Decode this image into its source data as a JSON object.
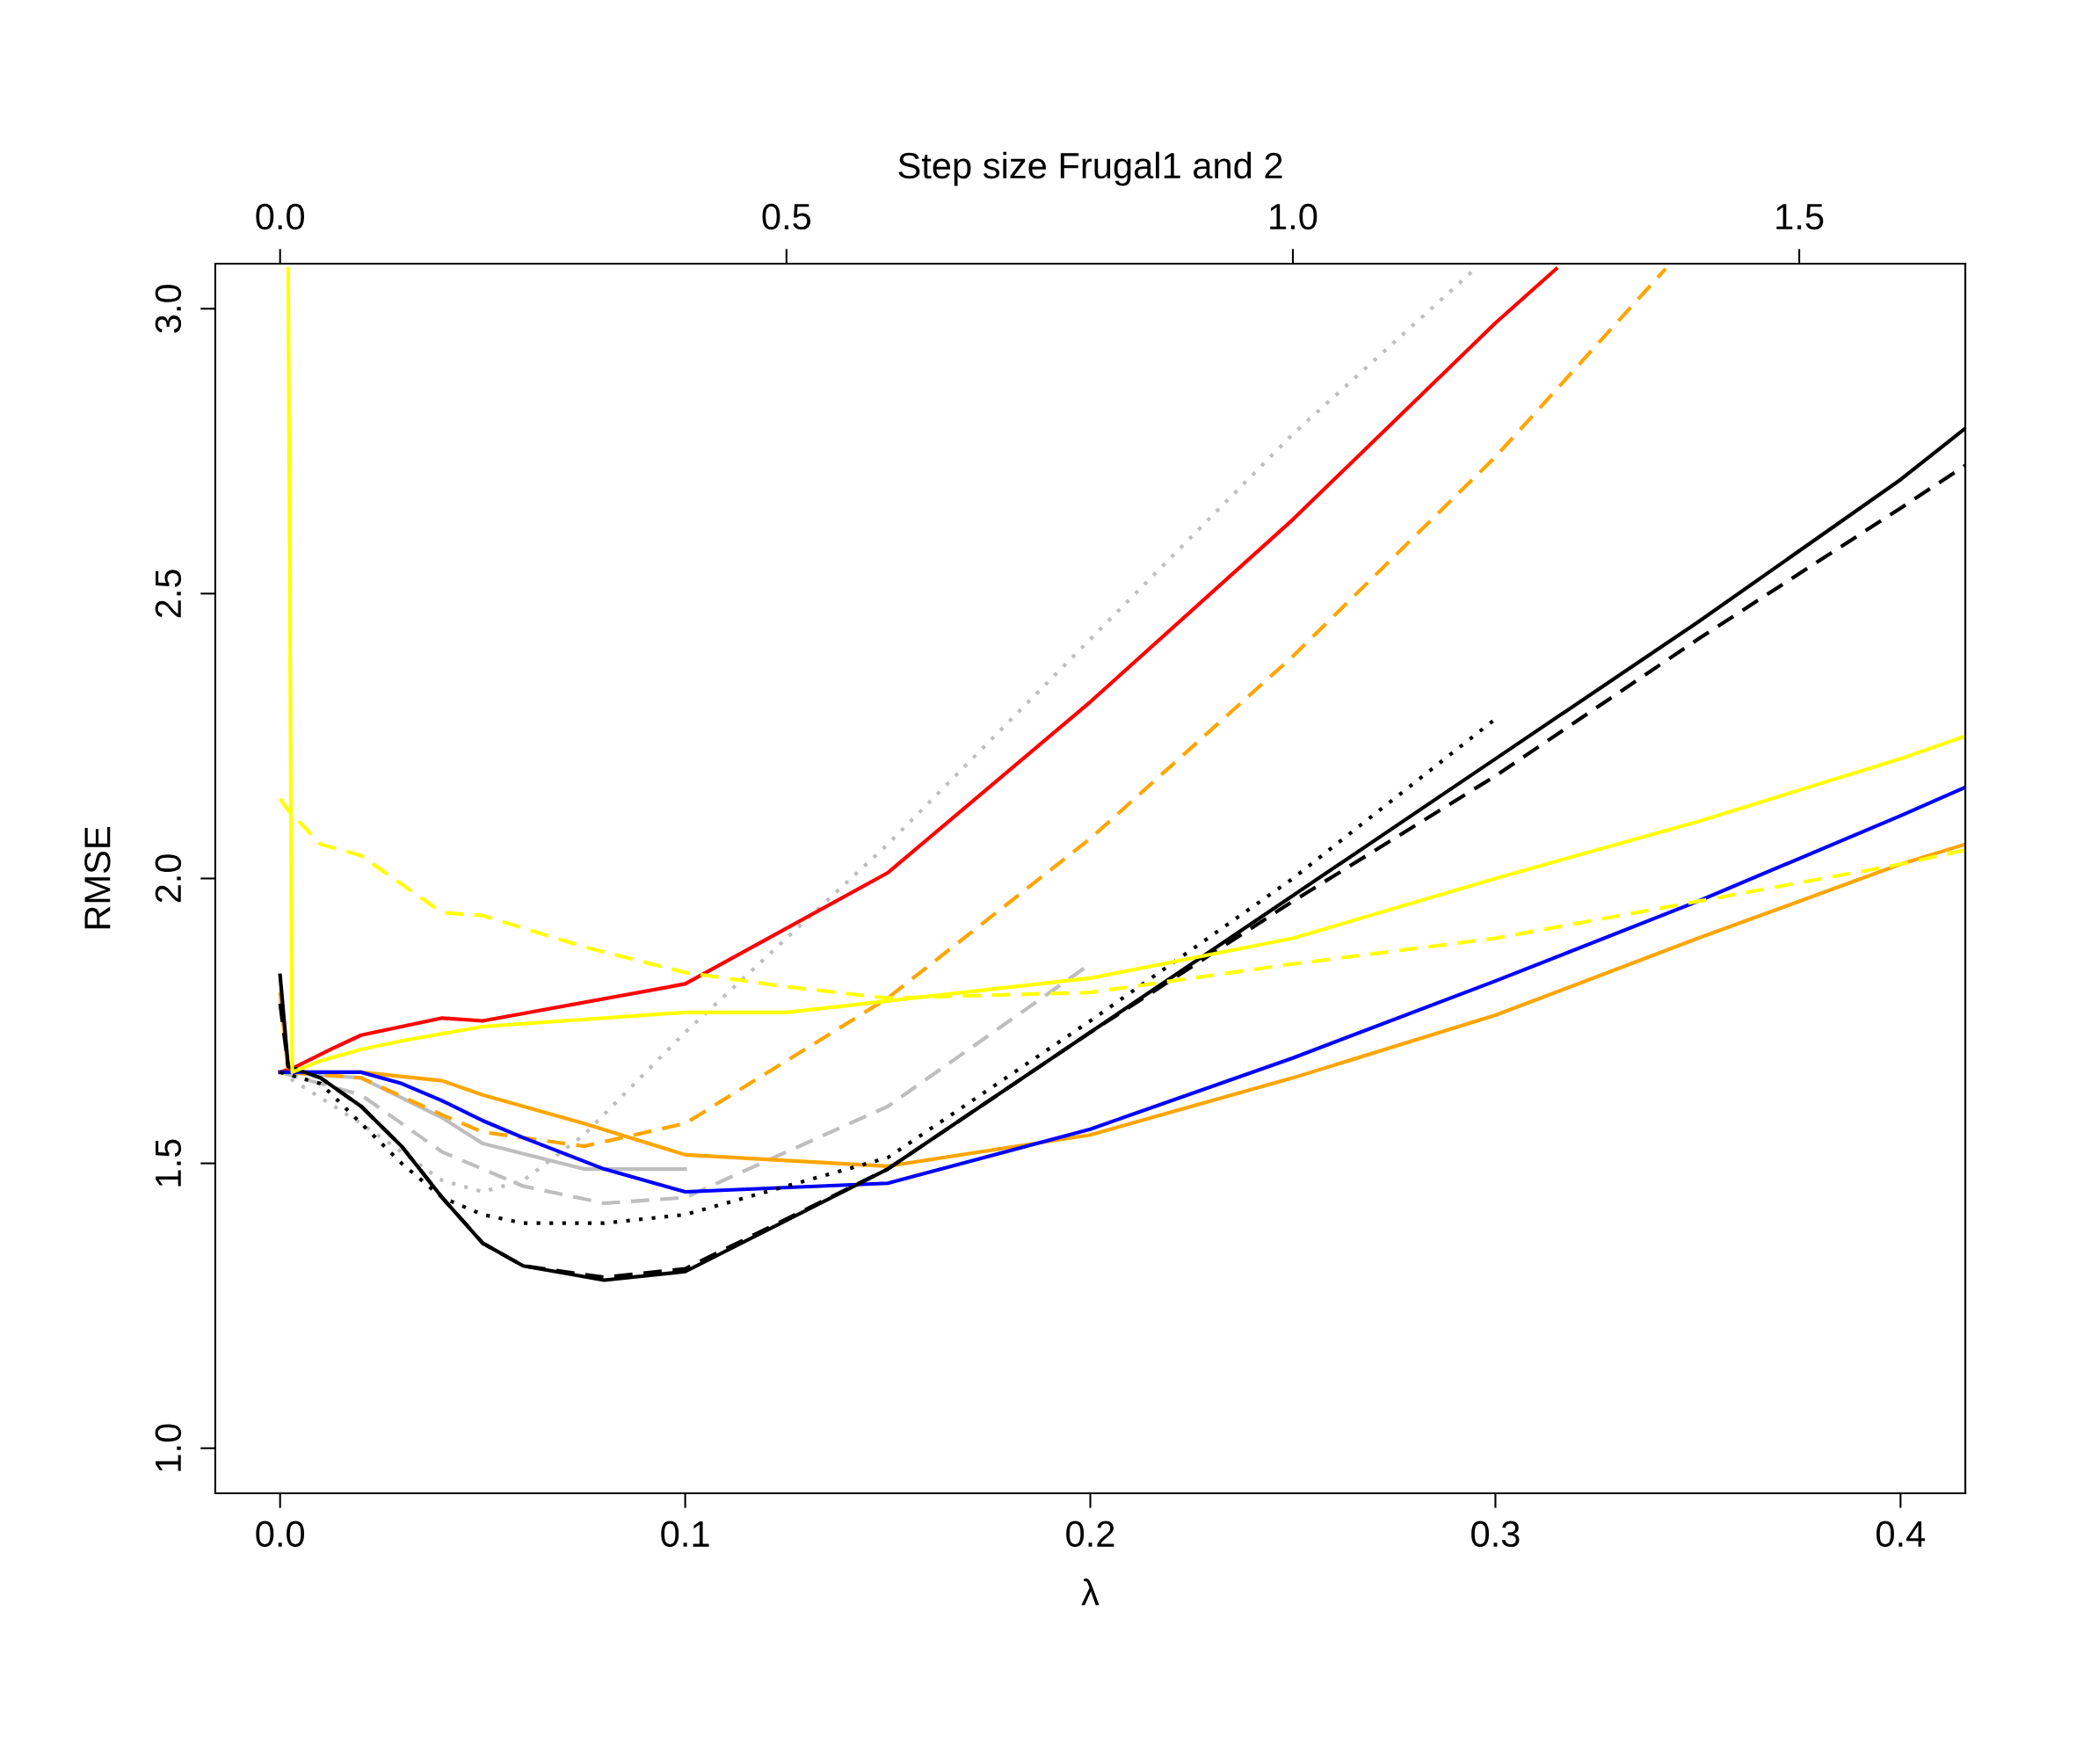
{
  "chart_data": {
    "type": "line",
    "xlabel": "λ",
    "ylabel": "RMSE",
    "x2label": "Step size Frugal1 and 2",
    "xlim": [
      -0.016,
      0.416
    ],
    "xticks": [
      {
        "value": 0,
        "label": "0.0"
      },
      0.1,
      0.2,
      0.3,
      0.4
    ],
    "x2lim": [
      -0.064,
      1.664
    ],
    "x2ticks": [
      {
        "value": 0,
        "label": "0.0"
      },
      0.5,
      {
        "value": 1,
        "label": "1.0"
      },
      1.5
    ],
    "ylim": [
      0.921,
      3.079
    ],
    "yticks": [
      {
        "value": 1,
        "label": "1.0"
      },
      1.5,
      {
        "value": 2,
        "label": "2.0"
      },
      2.5,
      {
        "value": 3,
        "label": "3.0"
      }
    ],
    "series": [
      {
        "color": "#bebebe",
        "line_style": "dotted",
        "x": [
          0.0,
          0.02,
          0.04,
          0.05,
          0.06,
          0.075,
          0.1,
          0.15,
          0.2,
          0.25,
          0.295
        ],
        "values": [
          1.66,
          1.57,
          1.47,
          1.45,
          1.47,
          1.55,
          1.73,
          2.06,
          2.42,
          2.78,
          3.07
        ]
      },
      {
        "color": "#bebebe",
        "line_style": "dashed",
        "x": [
          0.0,
          0.02,
          0.04,
          0.06,
          0.08,
          0.1,
          0.15,
          0.2
        ],
        "values": [
          1.66,
          1.62,
          1.52,
          1.46,
          1.43,
          1.44,
          1.6,
          1.85
        ]
      },
      {
        "color": "#bebebe",
        "line_style": "solid",
        "x": [
          0.0,
          0.02,
          0.04,
          0.05,
          0.075,
          0.1
        ],
        "values": [
          1.66,
          1.65,
          1.58,
          1.535,
          1.49,
          1.49
        ]
      },
      {
        "color": "#ff0000",
        "line_style": "solid",
        "x": [
          0.0,
          0.004,
          0.0125,
          0.02,
          0.03,
          0.04,
          0.05,
          0.1,
          0.15,
          0.2,
          0.25,
          0.3,
          0.315
        ],
        "values": [
          1.66,
          1.67,
          1.7,
          1.725,
          1.74,
          1.755,
          1.75,
          1.815,
          2.01,
          2.31,
          2.63,
          2.975,
          3.07
        ]
      },
      {
        "color": "#ffa500",
        "line_style": "dashed",
        "x": [
          0.0,
          0.002,
          0.02,
          0.04,
          0.05,
          0.075,
          0.1,
          0.15,
          0.2,
          0.25,
          0.3,
          0.342
        ],
        "values": [
          1.8,
          1.66,
          1.65,
          1.585,
          1.555,
          1.53,
          1.57,
          1.79,
          2.07,
          2.39,
          2.74,
          3.07
        ]
      },
      {
        "color": "#ffa500",
        "line_style": "solid",
        "x": [
          0.0,
          0.02,
          0.04,
          0.05,
          0.075,
          0.1,
          0.15,
          0.2,
          0.25,
          0.3,
          0.35,
          0.4,
          0.416
        ],
        "values": [
          1.66,
          1.66,
          1.645,
          1.62,
          1.57,
          1.515,
          1.495,
          1.55,
          1.65,
          1.76,
          1.895,
          2.025,
          2.06
        ]
      },
      {
        "color": "#0000ff",
        "line_style": "solid",
        "x": [
          0.0,
          0.02,
          0.03,
          0.04,
          0.05,
          0.06,
          0.08,
          0.1,
          0.15,
          0.2,
          0.25,
          0.3,
          0.35,
          0.4,
          0.416
        ],
        "values": [
          1.66,
          1.66,
          1.64,
          1.61,
          1.575,
          1.545,
          1.49,
          1.45,
          1.465,
          1.56,
          1.685,
          1.82,
          1.96,
          2.11,
          2.16
        ]
      },
      {
        "color": "#000000",
        "line_style": "dotted",
        "x": [
          0.0,
          0.01,
          0.02,
          0.03,
          0.04,
          0.05,
          0.06,
          0.08,
          0.1,
          0.15,
          0.2,
          0.25,
          0.3
        ],
        "values": [
          1.66,
          1.64,
          1.57,
          1.5,
          1.44,
          1.41,
          1.395,
          1.395,
          1.41,
          1.51,
          1.75,
          2.0,
          2.28
        ]
      },
      {
        "color": "#000000",
        "line_style": "dashed",
        "x": [
          0.0,
          0.002,
          0.01,
          0.02,
          0.03,
          0.04,
          0.05,
          0.06,
          0.08,
          0.1,
          0.15,
          0.2,
          0.25,
          0.3,
          0.35,
          0.4,
          0.416
        ],
        "values": [
          1.78,
          1.67,
          1.65,
          1.6,
          1.53,
          1.44,
          1.36,
          1.32,
          1.3,
          1.315,
          1.49,
          1.73,
          1.96,
          2.18,
          2.42,
          2.65,
          2.725
        ]
      },
      {
        "color": "#000000",
        "line_style": "solid",
        "x": [
          0.0,
          0.002,
          0.01,
          0.02,
          0.03,
          0.04,
          0.05,
          0.06,
          0.08,
          0.1,
          0.15,
          0.2,
          0.25,
          0.3,
          0.35,
          0.4,
          0.416
        ],
        "values": [
          1.83,
          1.67,
          1.65,
          1.6,
          1.53,
          1.44,
          1.36,
          1.32,
          1.295,
          1.31,
          1.49,
          1.73,
          1.97,
          2.21,
          2.45,
          2.7,
          2.79
        ]
      },
      {
        "color": "#ffff00",
        "line_style": "dashed",
        "x": [
          0.0,
          0.002,
          0.01,
          0.02,
          0.04,
          0.05,
          0.075,
          0.1,
          0.125,
          0.15,
          0.2,
          0.25,
          0.3,
          0.35,
          0.4,
          0.416
        ],
        "values": [
          2.14,
          2.12,
          2.06,
          2.04,
          1.94,
          1.935,
          1.88,
          1.835,
          1.81,
          1.79,
          1.8,
          1.85,
          1.895,
          1.96,
          2.025,
          2.05
        ]
      },
      {
        "color": "#ffff00",
        "line_style": "solid",
        "x": [
          0.002,
          0.003,
          0.01,
          0.02,
          0.03,
          0.05,
          0.1,
          0.125,
          0.15,
          0.2,
          0.25,
          0.3,
          0.35,
          0.4,
          0.416
        ],
        "values": [
          3.07,
          1.66,
          1.68,
          1.7,
          1.715,
          1.74,
          1.765,
          1.765,
          1.785,
          1.825,
          1.895,
          2.0,
          2.1,
          2.21,
          2.25
        ]
      }
    ]
  }
}
